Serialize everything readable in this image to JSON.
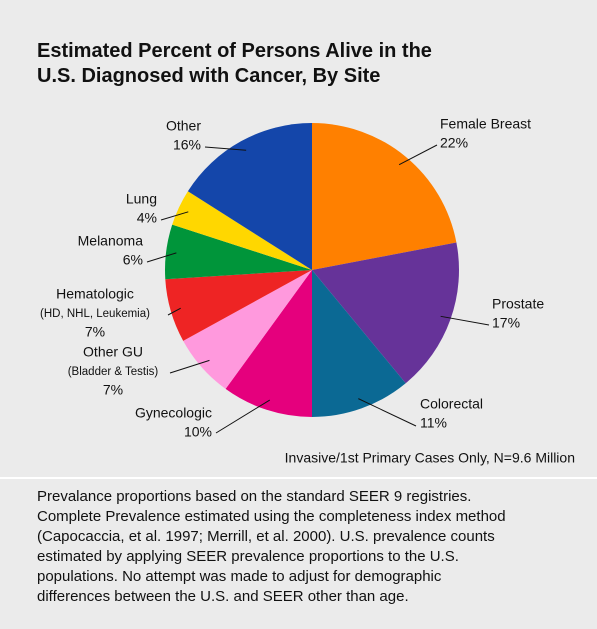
{
  "chart_data": {
    "type": "pie",
    "title_lines": [
      "Estimated Percent of Persons Alive in the",
      "U.S. Diagnosed with Cancer, By Site"
    ],
    "categories": [
      "Female Breast",
      "Prostate",
      "Colorectal",
      "Gynecologic",
      "Other GU",
      "Hematologic",
      "Melanoma",
      "Lung",
      "Other"
    ],
    "category_details": [
      null,
      null,
      null,
      null,
      "(Bladder & Testis)",
      "(HD, NHL, Leukemia)",
      null,
      null,
      null
    ],
    "values": [
      22,
      17,
      11,
      10,
      7,
      7,
      6,
      4,
      16
    ],
    "value_labels": [
      "22%",
      "17%",
      "11%",
      "10%",
      "7%",
      "7%",
      "6%",
      "4%",
      "16%"
    ],
    "colors": [
      "#ff8000",
      "#663399",
      "#0b6994",
      "#e5007d",
      "#ff99dd",
      "#ee2424",
      "#00953a",
      "#ffd700",
      "#1446aa"
    ],
    "annotation": "Invasive/1st Primary Cases Only, N=9.6 Million",
    "notes": [
      "Prevalance proportions based on the standard SEER 9 registries.",
      "Complete Prevalence estimated using the completeness index method",
      "(Capocaccia, et al. 1997; Merrill, et al. 2000). U.S. prevalence counts",
      "estimated by applying SEER prevalence proportions to the U.S.",
      "populations. No attempt was made to adjust for demographic",
      "differences between the U.S. and SEER other than age."
    ]
  }
}
